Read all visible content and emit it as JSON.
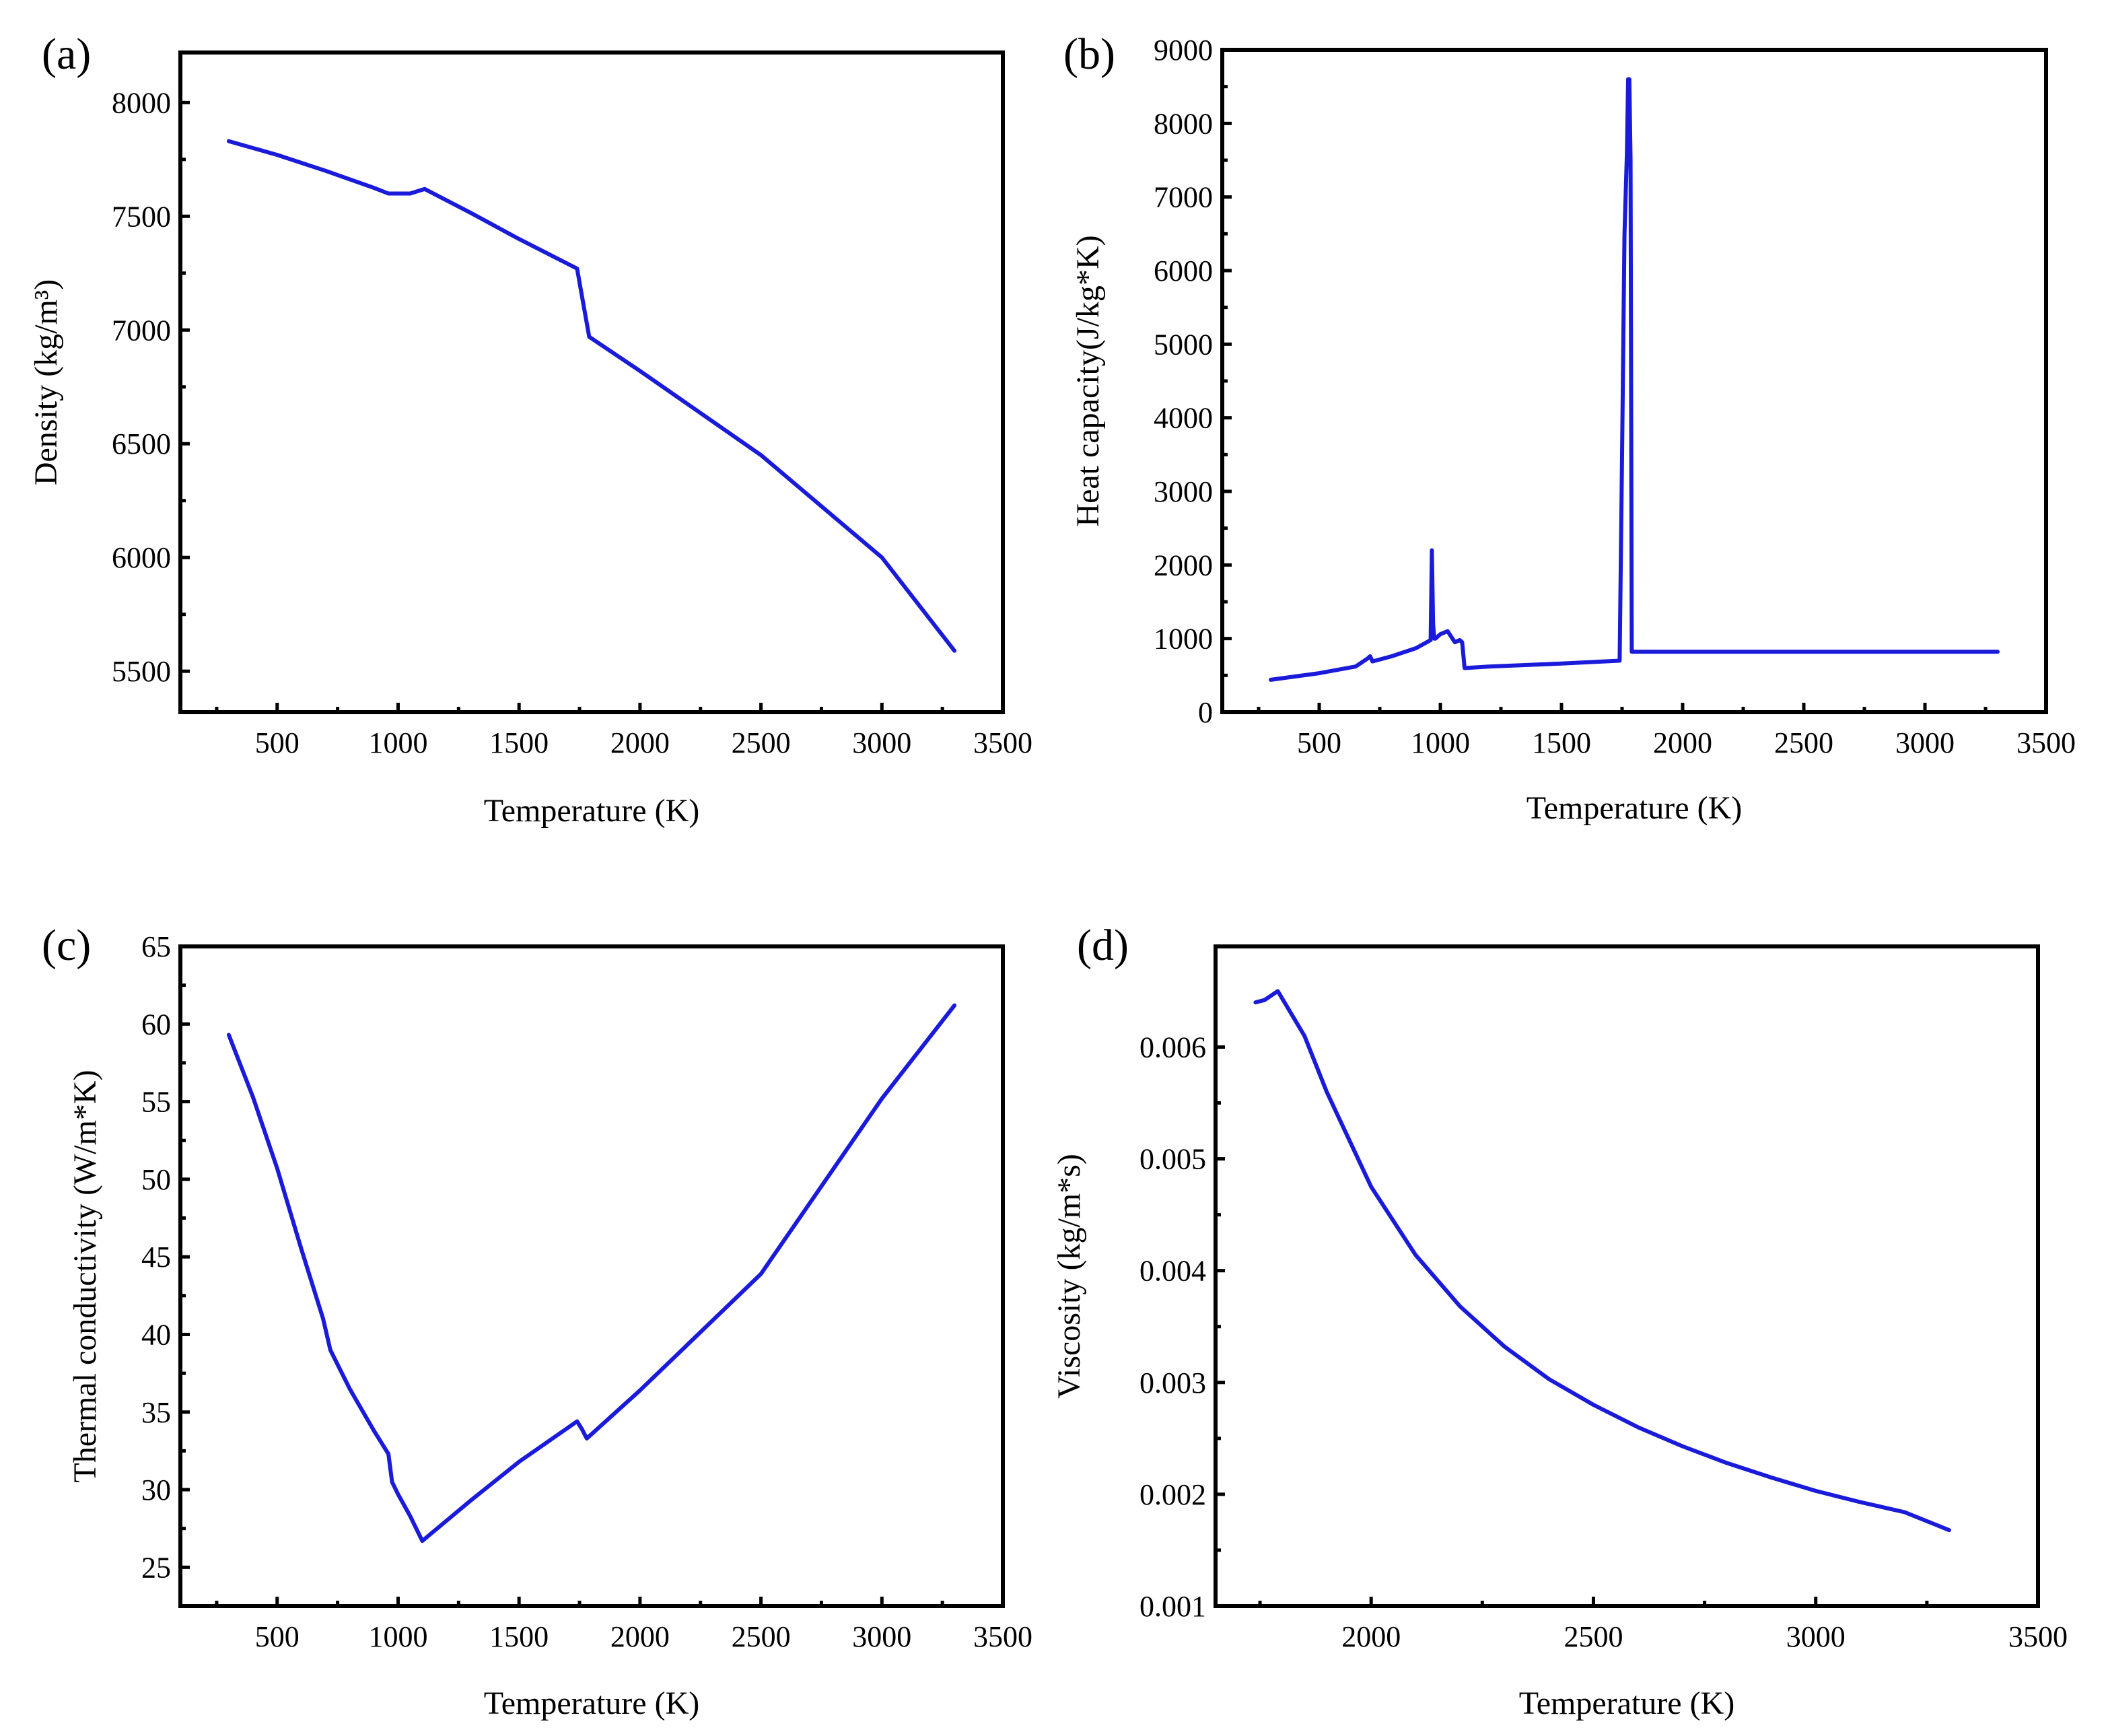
{
  "colors": {
    "line": "#1a1adb",
    "axis": "#000000"
  },
  "chart_data": [
    {
      "type": "line",
      "panel": "(a)",
      "title": "",
      "xlabel": "Temperature (K)",
      "ylabel": "Density (kg/m³)",
      "xlim": [
        100,
        3500
      ],
      "ylim": [
        5320,
        8220
      ],
      "xticks": [
        500,
        1000,
        1500,
        2000,
        2500,
        3000,
        3500
      ],
      "xtick_labels": [
        "500",
        "1000",
        "1500",
        "2000",
        "2500",
        "3000",
        "3500"
      ],
      "yticks": [
        5500,
        6000,
        6500,
        7000,
        7500,
        8000
      ],
      "ytick_labels": [
        "5500",
        "6000",
        "6500",
        "7000",
        "7500",
        "8000"
      ],
      "grid": false,
      "series": [
        {
          "name": "Density",
          "x": [
            300,
            500,
            700,
            900,
            960,
            1000,
            1050,
            1080,
            1110,
            1300,
            1500,
            1740,
            1760,
            1790,
            2000,
            2500,
            3000,
            3300
          ],
          "y": [
            7830,
            7770,
            7700,
            7625,
            7600,
            7600,
            7600,
            7610,
            7620,
            7515,
            7400,
            7270,
            7150,
            6970,
            6820,
            6450,
            6000,
            5590
          ]
        }
      ]
    },
    {
      "type": "line",
      "panel": "(b)",
      "title": "",
      "xlabel": "Temperature (K)",
      "ylabel": "Heat capacity(J/kg*K)",
      "xlim": [
        100,
        3500
      ],
      "ylim": [
        0,
        9000
      ],
      "xticks": [
        500,
        1000,
        1500,
        2000,
        2500,
        3000,
        3500
      ],
      "xtick_labels": [
        "500",
        "1000",
        "1500",
        "2000",
        "2500",
        "3000",
        "3500"
      ],
      "yticks": [
        0,
        1000,
        2000,
        3000,
        4000,
        5000,
        6000,
        7000,
        8000,
        9000
      ],
      "ytick_labels": [
        "0",
        "1000",
        "2000",
        "3000",
        "4000",
        "5000",
        "6000",
        "7000",
        "8000",
        "9000"
      ],
      "grid": false,
      "series": [
        {
          "name": "Heat capacity",
          "x": [
            300,
            500,
            650,
            700,
            710,
            720,
            800,
            900,
            960,
            965,
            970,
            975,
            980,
            1000,
            1030,
            1060,
            1080,
            1090,
            1100,
            1105,
            1200,
            1500,
            1740,
            1750,
            1760,
            1770,
            1775,
            1780,
            1785,
            1790,
            2000,
            2500,
            3000,
            3300
          ],
          "y": [
            440,
            530,
            620,
            730,
            760,
            690,
            760,
            870,
            980,
            2200,
            1200,
            1000,
            1000,
            1060,
            1100,
            950,
            980,
            950,
            600,
            600,
            620,
            660,
            700,
            3500,
            6500,
            7600,
            8600,
            8600,
            7500,
            820,
            820,
            820,
            820,
            820
          ]
        }
      ]
    },
    {
      "type": "line",
      "panel": "(c)",
      "title": "",
      "xlabel": "Temperature (K)",
      "ylabel": "Thermal conductivity (W/m*K)",
      "xlim": [
        100,
        3500
      ],
      "ylim": [
        22.5,
        65
      ],
      "xticks": [
        500,
        1000,
        1500,
        2000,
        2500,
        3000,
        3500
      ],
      "xtick_labels": [
        "500",
        "1000",
        "1500",
        "2000",
        "2500",
        "3000",
        "3500"
      ],
      "yticks": [
        25,
        30,
        35,
        40,
        45,
        50,
        55,
        60,
        65
      ],
      "ytick_labels": [
        "25",
        "30",
        "35",
        "40",
        "45",
        "50",
        "55",
        "60",
        "65"
      ],
      "grid": false,
      "series": [
        {
          "name": "Thermal conductivity",
          "x": [
            300,
            400,
            500,
            600,
            690,
            720,
            800,
            900,
            960,
            975,
            1000,
            1050,
            1100,
            1300,
            1500,
            1740,
            1760,
            1780,
            2000,
            2500,
            3000,
            3300
          ],
          "y": [
            59.3,
            55.3,
            50.7,
            45.5,
            41.0,
            39.0,
            36.5,
            33.8,
            32.3,
            30.5,
            29.7,
            28.3,
            26.7,
            29.3,
            31.8,
            34.4,
            33.9,
            33.3,
            36.4,
            43.9,
            55.2,
            61.2
          ]
        }
      ]
    },
    {
      "type": "line",
      "panel": "(d)",
      "title": "",
      "xlabel": "Temperature (K)",
      "ylabel": "Viscosity (kg/m*s)",
      "xlim": [
        1650,
        3500
      ],
      "ylim": [
        0.001,
        0.0069
      ],
      "xticks": [
        2000,
        2500,
        3000,
        3500
      ],
      "xtick_labels": [
        "2000",
        "2500",
        "3000",
        "3500"
      ],
      "yticks": [
        0.001,
        0.002,
        0.003,
        0.004,
        0.005,
        0.006
      ],
      "ytick_labels": [
        "0.001",
        "0.002",
        "0.003",
        "0.004",
        "0.005",
        "0.006"
      ],
      "grid": false,
      "series": [
        {
          "name": "Viscosity",
          "x": [
            1740,
            1760,
            1790,
            1850,
            1900,
            2000,
            2100,
            2200,
            2300,
            2400,
            2500,
            2600,
            2700,
            2800,
            2900,
            3000,
            3100,
            3200,
            3300
          ],
          "y": [
            0.0064,
            0.00642,
            0.0065,
            0.0061,
            0.0056,
            0.00475,
            0.00414,
            0.00368,
            0.00332,
            0.00303,
            0.0028,
            0.0026,
            0.00243,
            0.00228,
            0.00215,
            0.00203,
            0.00193,
            0.00184,
            0.00168
          ]
        }
      ]
    }
  ]
}
